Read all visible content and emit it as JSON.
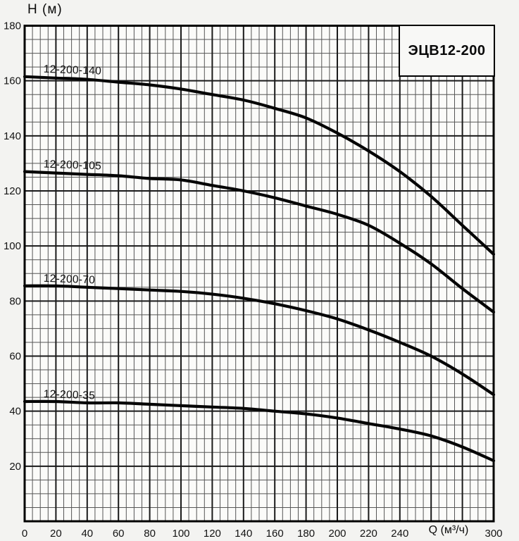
{
  "chart_data": {
    "type": "line",
    "title": "ЭЦВ12-200",
    "ylabel": "H (м)",
    "xlabel": "Q (м³/ч)",
    "x": [
      0,
      20,
      40,
      60,
      80,
      100,
      120,
      140,
      160,
      180,
      200,
      220,
      240,
      260,
      280,
      300
    ],
    "xlim": [
      0,
      300
    ],
    "ylim": [
      0,
      180
    ],
    "x_tick_step": 20,
    "y_tick_step": 20,
    "x_ticks_hidden": [
      260,
      280
    ],
    "grid": {
      "minor_step": 5,
      "major_step": 20,
      "minor_color": "#565656",
      "major_color": "#1a1a1a"
    },
    "legend_position": "inline-curve-labels",
    "curve_color": "#050505",
    "series": [
      {
        "name": "12-200-140",
        "values": [
          161.5,
          161,
          160.5,
          159.5,
          158.5,
          157,
          155,
          153,
          150,
          146.5,
          141,
          134.5,
          127,
          118,
          107.5,
          97
        ]
      },
      {
        "name": "12-200-105",
        "values": [
          127,
          126.5,
          126,
          125.5,
          124.5,
          124,
          122,
          120,
          117.5,
          114.5,
          111.5,
          107.5,
          101,
          93.5,
          84.5,
          76
        ]
      },
      {
        "name": "12-200-70",
        "values": [
          85.5,
          85.5,
          85,
          84.5,
          84,
          83.5,
          82.5,
          81,
          79,
          76.5,
          73.5,
          69.5,
          65,
          60,
          53.5,
          46
        ]
      },
      {
        "name": "12-200-35",
        "values": [
          43.5,
          43.5,
          43,
          43,
          42.5,
          42,
          41.5,
          41,
          40,
          39,
          37.5,
          35.5,
          33.5,
          31,
          27,
          22
        ]
      }
    ]
  }
}
